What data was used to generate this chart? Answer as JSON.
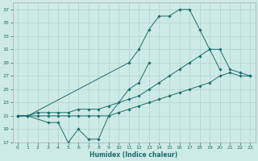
{
  "xlabel": "Humidex (Indice chaleur)",
  "background_color": "#ceeae6",
  "grid_color": "#aed4d0",
  "line_color": "#1a6e6e",
  "curve1_x": [
    0,
    1,
    11,
    12,
    13,
    14,
    15,
    16,
    17,
    18,
    19,
    20
  ],
  "curve1_y": [
    21,
    21,
    29,
    31,
    34,
    36,
    36,
    37,
    37,
    34,
    31,
    28
  ],
  "curve2_x": [
    0,
    1,
    3,
    4,
    5,
    6,
    7,
    8,
    9,
    11,
    12,
    13
  ],
  "curve2_y": [
    21,
    21,
    20,
    20,
    17,
    19,
    17.5,
    17.5,
    21,
    25,
    26,
    29
  ],
  "curve3_x": [
    0,
    1,
    2,
    3,
    4,
    5,
    6,
    7,
    8,
    9,
    10,
    11,
    12,
    13,
    14,
    15,
    16,
    17,
    18,
    19,
    20,
    21,
    22,
    23
  ],
  "curve3_y": [
    21,
    21,
    21.5,
    21.5,
    21.5,
    21.5,
    22,
    22,
    22,
    22.5,
    23,
    23.5,
    24,
    25,
    26,
    27,
    28,
    29,
    30,
    31,
    31,
    28,
    27.5,
    27
  ],
  "curve4_x": [
    0,
    1,
    2,
    3,
    4,
    5,
    6,
    7,
    8,
    9,
    10,
    11,
    12,
    13,
    14,
    15,
    16,
    17,
    18,
    19,
    20,
    21,
    22,
    23
  ],
  "curve4_y": [
    21,
    21,
    21,
    21,
    21,
    21,
    21,
    21,
    21,
    21,
    21.5,
    22,
    22.5,
    23,
    23.5,
    24,
    24.5,
    25,
    25.5,
    26,
    27,
    27.5,
    27,
    27
  ],
  "ylim": [
    17,
    38
  ],
  "xlim": [
    -0.5,
    23.5
  ],
  "yticks": [
    17,
    19,
    21,
    23,
    25,
    27,
    29,
    31,
    33,
    35,
    37
  ],
  "xticks": [
    0,
    1,
    2,
    3,
    4,
    5,
    6,
    7,
    8,
    9,
    10,
    11,
    12,
    13,
    14,
    15,
    16,
    17,
    18,
    19,
    20,
    21,
    22,
    23
  ]
}
